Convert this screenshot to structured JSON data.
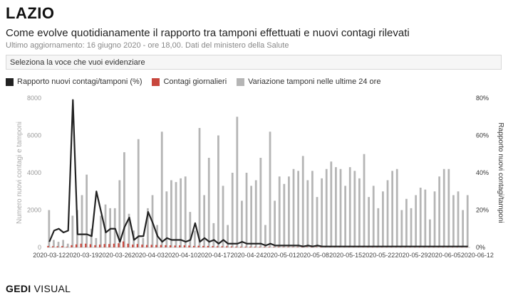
{
  "header": {
    "title": "LAZIO",
    "subtitle": "Come evolve quotidianamente il rapporto tra tamponi effettuati e nuovi contagi rilevati",
    "note": "Ultimo aggiornamento: 16 giugno 2020 - ore 18,00. Dati del ministero della Salute"
  },
  "selector": {
    "placeholder": "Seleziona la voce che vuoi evidenziare"
  },
  "footer": {
    "brand": "GEDI",
    "sub": " VISUAL"
  },
  "colors": {
    "ratio": "#222222",
    "contagi": "#c8473d",
    "tamponi": "#b5b5b5"
  },
  "chart_data": {
    "type": "bar",
    "ylabel": "Numero nuovi contagi e tamponi",
    "y2label": "Rapporto nuovi contagi/tamponi",
    "ylim": [
      0,
      8000
    ],
    "y2lim": [
      0,
      80
    ],
    "yticks": [
      "0",
      "2000",
      "4000",
      "6000",
      "8000"
    ],
    "y2ticks": [
      "0%",
      "20%",
      "40%",
      "60%",
      "80%"
    ],
    "xticks": [
      "2020-03-12",
      "2020-03-19",
      "2020-03-26",
      "2020-04-03",
      "2020-04-10",
      "2020-04-17",
      "2020-04-24",
      "2020-05-01",
      "2020-05-08",
      "2020-05-15",
      "2020-05-22",
      "2020-05-29",
      "2020-06-05",
      "2020-06-12"
    ],
    "legend": [
      "Rapporto nuovi contagi/tamponi (%)",
      "Contagi giornalieri",
      "Variazione tamponi nelle ultime 24 ore"
    ],
    "legend_position": "top-left",
    "grid": false,
    "series": [
      {
        "name": "Variazione tamponi nelle ultime 24 ore",
        "values": [
          2000,
          400,
          300,
          400,
          200,
          1700,
          2000,
          2800,
          3900,
          1000,
          500,
          1700,
          2300,
          2100,
          2100,
          3600,
          5100,
          1800,
          900,
          5800,
          500,
          2100,
          2800,
          1200,
          6200,
          3000,
          3600,
          3500,
          3700,
          3800,
          1900,
          900,
          6400,
          2800,
          4800,
          1300,
          6000,
          3300,
          1200,
          4000,
          7000,
          2500,
          4000,
          3300,
          3600,
          4800,
          1200,
          6200,
          2500,
          3800,
          3400,
          3800,
          4200,
          4100,
          4900,
          3600,
          4100,
          2700,
          3700,
          4200,
          4600,
          4300,
          4200,
          3300,
          4300,
          4100,
          3700,
          5000,
          2700,
          3300,
          2100,
          3000,
          3600,
          4100,
          4200,
          2000,
          2600,
          2100,
          2800,
          3200,
          3100,
          1500,
          3000,
          3800,
          4200,
          4200,
          2800,
          3000,
          2000,
          2800
        ]
      },
      {
        "name": "Contagi giornalieri",
        "values": [
          80,
          60,
          60,
          70,
          30,
          120,
          160,
          200,
          200,
          170,
          120,
          150,
          180,
          180,
          200,
          220,
          320,
          200,
          150,
          180,
          150,
          130,
          140,
          130,
          130,
          120,
          110,
          100,
          110,
          110,
          100,
          80,
          90,
          80,
          80,
          70,
          60,
          60,
          60,
          50,
          40,
          40,
          40,
          40,
          35,
          30,
          30,
          30,
          25,
          25,
          20,
          20,
          20,
          20,
          20,
          20,
          20,
          20,
          20,
          20,
          20,
          20,
          20,
          20,
          20,
          20,
          20,
          20,
          15,
          15,
          15,
          15,
          15,
          15,
          15,
          15,
          15,
          15,
          15,
          15,
          15,
          15,
          15,
          15,
          15,
          15,
          15,
          15,
          15,
          15
        ]
      },
      {
        "name": "Rapporto nuovi contagi/tamponi (%)",
        "values": [
          3,
          9,
          10,
          8,
          9,
          79,
          7,
          7,
          7,
          6,
          30,
          19,
          8,
          10,
          10,
          3,
          11,
          16,
          4,
          6,
          6,
          19,
          13,
          6,
          3,
          5,
          4,
          4,
          4,
          3,
          4,
          13,
          3,
          5,
          3,
          4,
          2,
          4,
          2,
          2,
          2,
          3,
          2,
          2,
          2,
          2,
          1,
          2,
          1,
          1,
          1,
          1,
          1,
          1,
          0.5,
          1,
          0.5,
          1,
          0.5,
          0.5,
          0.5,
          0.5,
          0.5,
          0.5,
          0.5,
          0.5,
          0.5,
          0.5,
          0.5,
          0.5,
          0.5,
          0.5,
          0.5,
          0.5,
          0.5,
          0.5,
          0.5,
          0.5,
          0.5,
          0.5,
          0.5,
          0.5,
          0.5,
          0.5,
          0.5,
          0.5,
          0.5,
          0.5,
          0.5,
          0.5
        ]
      }
    ]
  }
}
